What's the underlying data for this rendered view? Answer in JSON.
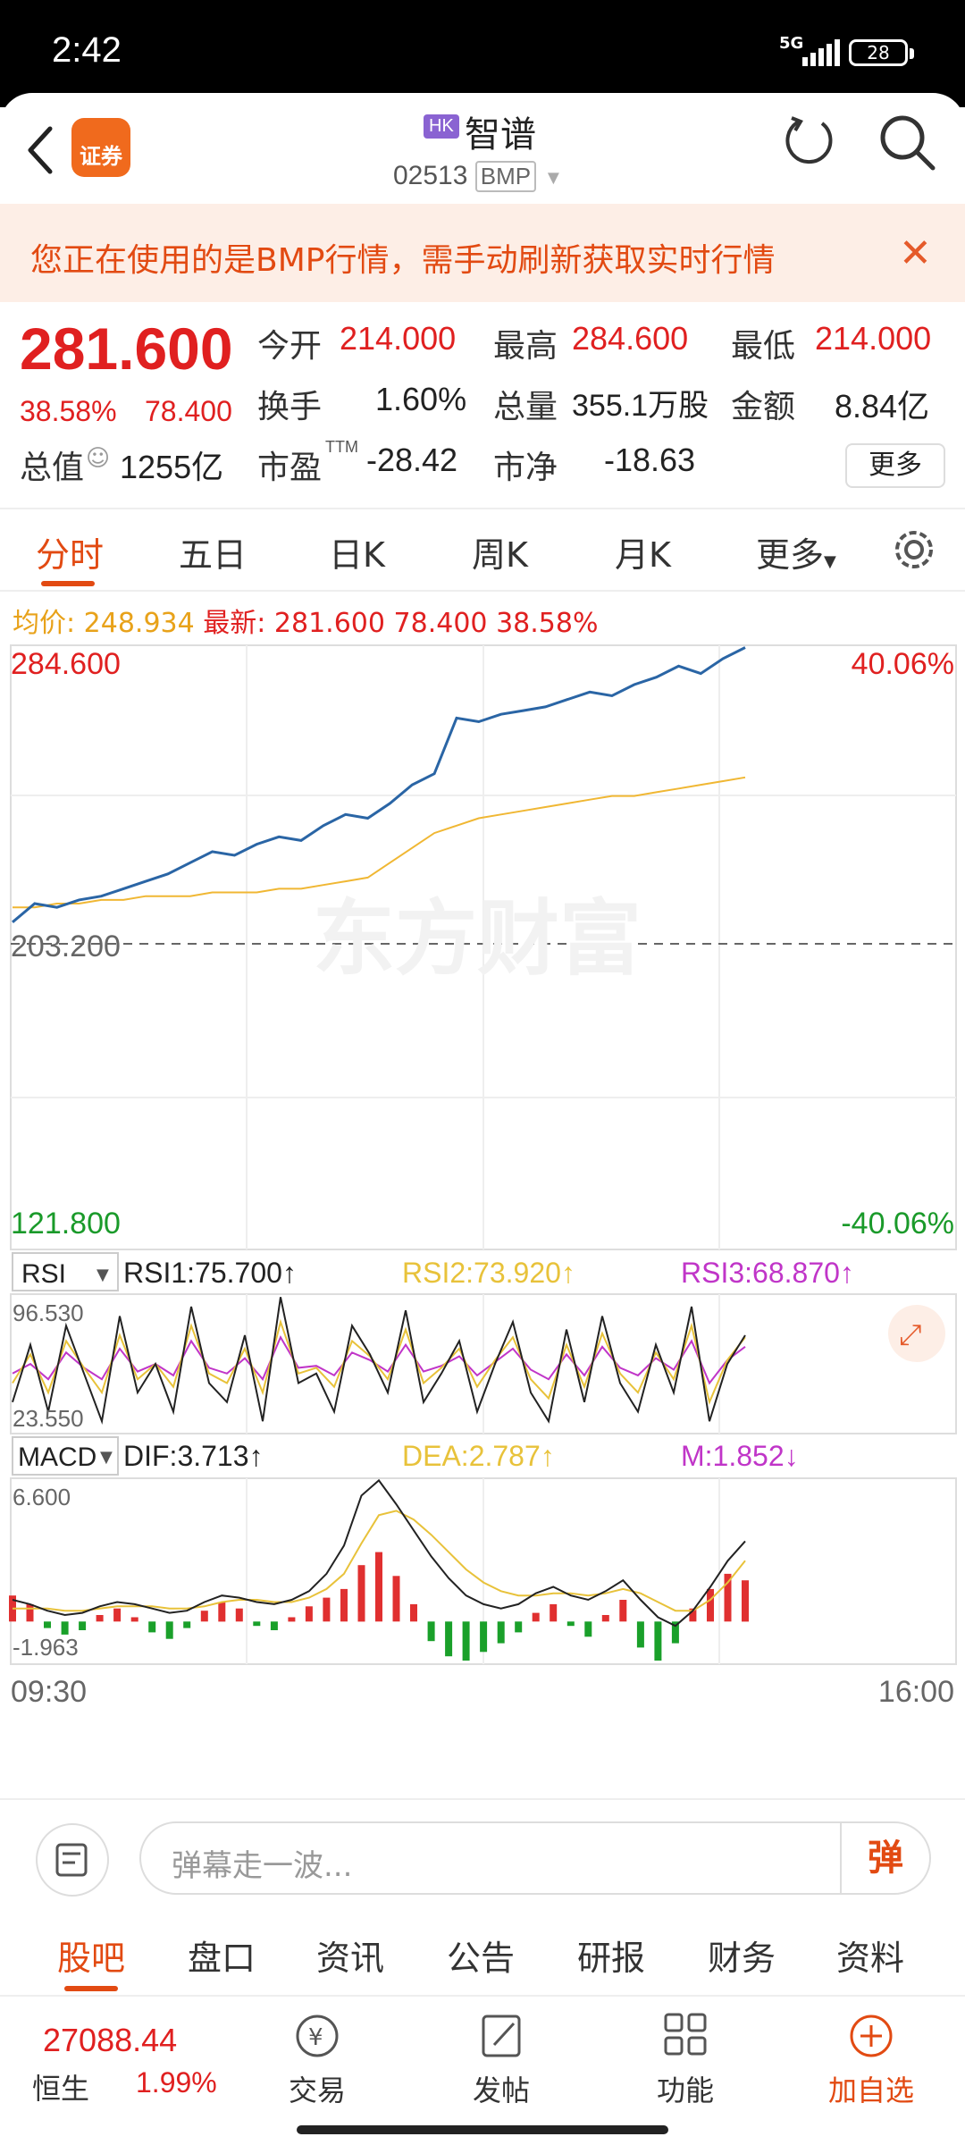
{
  "status": {
    "time": "2:42",
    "network": "5G",
    "battery": "28"
  },
  "header": {
    "market_badge": "HK",
    "title": "智谱",
    "code": "02513",
    "quote_source": "BMP",
    "logo_text": "证券"
  },
  "banner": {
    "message": "您正在使用的是BMP行情，需手动刷新获取实时行情",
    "close": "✕"
  },
  "quote": {
    "price": "281.600",
    "change_pct": "38.58%",
    "change": "78.400",
    "open_label": "今开",
    "open": "214.000",
    "high_label": "最高",
    "high": "284.600",
    "low_label": "最低",
    "low": "214.000",
    "turnover_label": "换手",
    "turnover": "1.60%",
    "volume_label": "总量",
    "volume": "355.1万股",
    "amount_label": "金额",
    "amount": "8.84亿",
    "mktcap_label": "总值",
    "mktcap": "1255亿",
    "pe_label": "市盈",
    "pe_sup": "TTM",
    "pe": "-28.42",
    "pb_label": "市净",
    "pb": "-18.63",
    "more": "更多"
  },
  "tabs": [
    "分时",
    "五日",
    "日K",
    "周K",
    "月K",
    "更多"
  ],
  "avgbar": {
    "avg_label": "均价:",
    "avg": "248.934",
    "latest_label": "最新:",
    "latest": "281.600",
    "change": "78.400",
    "pct": "38.58%"
  },
  "chart_data": [
    {
      "type": "line",
      "title": "",
      "y_labels": {
        "top": "284.600",
        "mid": "203.200",
        "bottom": "121.800",
        "top_pct": "40.06%",
        "bottom_pct": "-40.06%"
      },
      "x_labels": {
        "start": "09:30",
        "end": "16:00"
      },
      "ylim": [
        121.8,
        284.6
      ],
      "watermark": "东方财富",
      "series": [
        {
          "name": "",
          "color": "#2a65a5",
          "values": [
            210,
            215,
            214,
            216,
            217,
            219,
            221,
            223,
            226,
            229,
            228,
            231,
            233,
            232,
            236,
            239,
            238,
            242,
            247,
            250,
            265,
            264,
            266,
            267,
            268,
            270,
            272,
            271,
            274,
            276,
            279,
            277,
            281,
            284
          ]
        },
        {
          "name": "均价",
          "color": "#f0b733",
          "values": [
            214,
            214,
            215,
            215,
            216,
            216,
            217,
            217,
            217,
            218,
            218,
            218,
            219,
            219,
            220,
            221,
            222,
            226,
            230,
            234,
            236,
            238,
            239,
            240,
            241,
            242,
            243,
            244,
            244,
            245,
            246,
            247,
            248,
            249
          ]
        }
      ]
    },
    {
      "type": "line",
      "title": "RSI",
      "y_labels": {
        "top": "96.530",
        "bottom": "23.550"
      },
      "ylim": [
        23.55,
        96.53
      ],
      "legend": {
        "rsi1": "RSI1:75.700↑",
        "rsi2": "RSI2:73.920↑",
        "rsi3": "RSI3:68.870↑"
      },
      "series": [
        {
          "name": "RSI1",
          "color": "#222222",
          "values": [
            40,
            70,
            35,
            80,
            55,
            30,
            85,
            45,
            60,
            35,
            90,
            50,
            40,
            75,
            30,
            95,
            50,
            55,
            35,
            80,
            65,
            45,
            88,
            40,
            55,
            72,
            35,
            60,
            82,
            45,
            30,
            78,
            40,
            85,
            50,
            35,
            70,
            45,
            90,
            30,
            60,
            75
          ]
        },
        {
          "name": "RSI2",
          "color": "#e8c23a",
          "values": [
            50,
            65,
            45,
            72,
            58,
            45,
            75,
            52,
            60,
            48,
            80,
            55,
            50,
            68,
            45,
            82,
            55,
            58,
            48,
            72,
            64,
            52,
            78,
            50,
            58,
            68,
            48,
            62,
            74,
            52,
            42,
            70,
            48,
            76,
            55,
            45,
            66,
            52,
            80,
            40,
            62,
            74
          ]
        },
        {
          "name": "RSI3",
          "color": "#c035c8",
          "values": [
            55,
            60,
            52,
            66,
            58,
            52,
            68,
            56,
            60,
            54,
            72,
            58,
            55,
            63,
            52,
            74,
            58,
            59,
            54,
            66,
            62,
            56,
            70,
            56,
            59,
            64,
            54,
            61,
            68,
            57,
            52,
            65,
            54,
            69,
            58,
            54,
            63,
            57,
            72,
            50,
            62,
            69
          ]
        }
      ]
    },
    {
      "type": "bar",
      "title": "MACD",
      "y_labels": {
        "top": "6.600",
        "bottom": "-1.963"
      },
      "ylim": [
        -1.963,
        6.6
      ],
      "legend": {
        "dif": "DIF:3.713↑",
        "dea": "DEA:2.787↑",
        "m": "M:1.852↓"
      },
      "values": [
        1.2,
        0.8,
        -0.3,
        -0.6,
        -0.4,
        0.3,
        0.6,
        0.2,
        -0.5,
        -0.8,
        -0.3,
        0.5,
        0.9,
        0.6,
        -0.2,
        -0.4,
        0.2,
        0.7,
        1.1,
        1.5,
        2.6,
        3.2,
        2.1,
        0.8,
        -0.9,
        -1.6,
        -1.8,
        -1.4,
        -1.0,
        -0.5,
        0.4,
        0.8,
        -0.2,
        -0.7,
        0.3,
        1.0,
        -1.2,
        -1.8,
        -1.0,
        0.6,
        1.5,
        2.2,
        1.9
      ],
      "series": [
        {
          "name": "DIF",
          "color": "#222222",
          "values": [
            1.0,
            0.8,
            0.5,
            0.3,
            0.4,
            0.7,
            0.9,
            0.8,
            0.6,
            0.4,
            0.5,
            0.9,
            1.2,
            1.1,
            0.9,
            0.8,
            1.0,
            1.4,
            2.2,
            3.5,
            5.8,
            6.5,
            5.4,
            4.2,
            3.0,
            2.0,
            1.2,
            0.8,
            0.6,
            0.8,
            1.3,
            1.6,
            1.2,
            1.0,
            1.4,
            1.9,
            1.0,
            0.2,
            -0.2,
            0.5,
            1.6,
            2.8,
            3.7
          ]
        },
        {
          "name": "DEA",
          "color": "#e8c23a",
          "values": [
            0.6,
            0.6,
            0.6,
            0.5,
            0.5,
            0.6,
            0.7,
            0.7,
            0.7,
            0.6,
            0.6,
            0.7,
            0.9,
            1.0,
            1.0,
            0.9,
            0.9,
            1.1,
            1.5,
            2.2,
            3.6,
            4.9,
            5.1,
            4.7,
            4.0,
            3.2,
            2.4,
            1.8,
            1.4,
            1.2,
            1.2,
            1.3,
            1.3,
            1.2,
            1.3,
            1.5,
            1.3,
            0.9,
            0.5,
            0.5,
            1.0,
            1.8,
            2.8
          ]
        }
      ]
    }
  ],
  "input": {
    "placeholder": "弹幕走一波...",
    "dan": "弹"
  },
  "subtabs": [
    "股吧",
    "盘口",
    "资讯",
    "公告",
    "研报",
    "财务",
    "资料"
  ],
  "bottom": {
    "index_value": "27088.44",
    "index_name": "恒生",
    "index_pct": "1.99%",
    "nav": [
      "交易",
      "发帖",
      "功能",
      "加自选"
    ]
  }
}
